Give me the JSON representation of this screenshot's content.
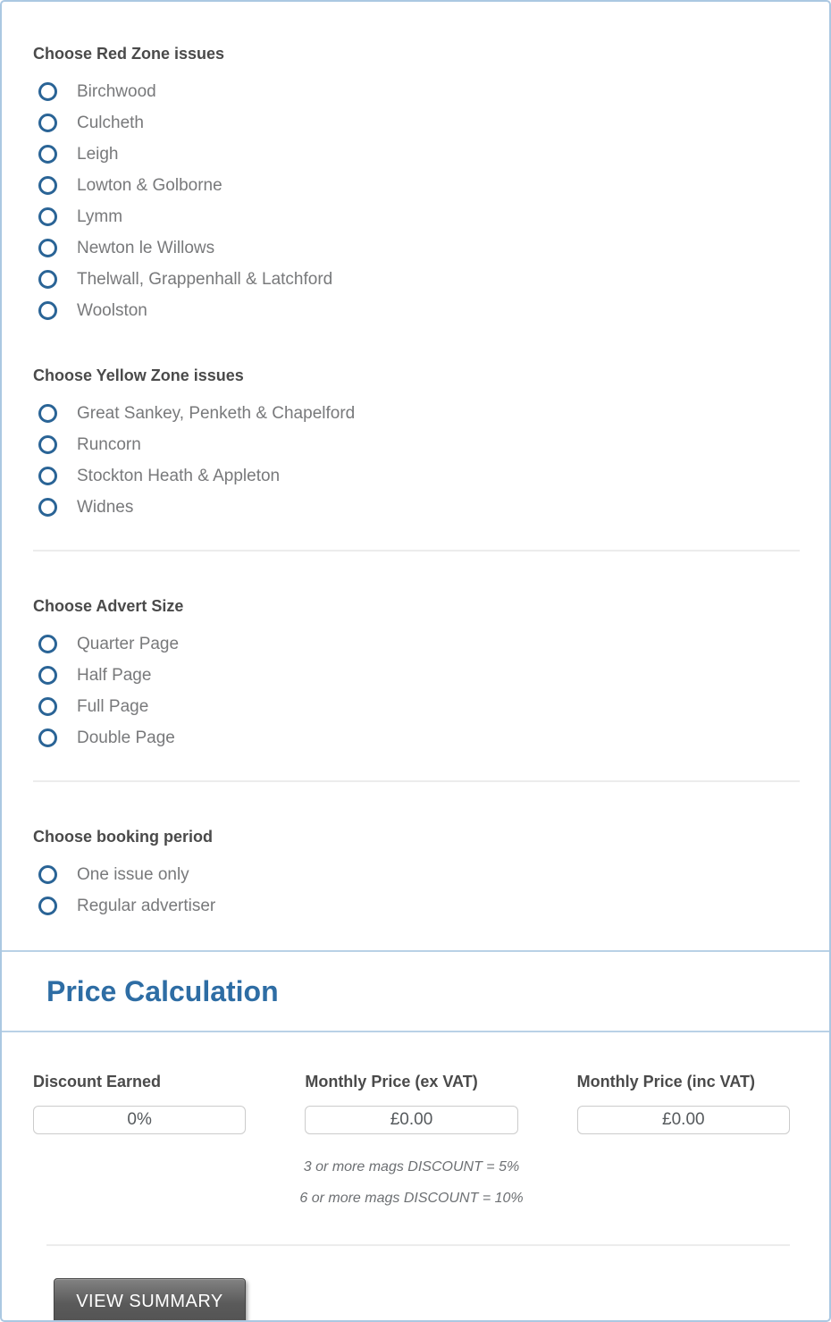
{
  "form": {
    "sections": [
      {
        "heading": "Choose Red Zone issues",
        "options": [
          "Birchwood",
          "Culcheth",
          "Leigh",
          "Lowton & Golborne",
          "Lymm",
          "Newton le Willows",
          "Thelwall, Grappenhall & Latchford",
          "Woolston"
        ]
      },
      {
        "heading": "Choose Yellow Zone issues",
        "options": [
          "Great Sankey, Penketh & Chapelford",
          "Runcorn",
          "Stockton Heath & Appleton",
          "Widnes"
        ]
      },
      {
        "heading": "Choose Advert Size",
        "options": [
          "Quarter Page",
          "Half Page",
          "Full Page",
          "Double Page"
        ]
      },
      {
        "heading": "Choose booking period",
        "options": [
          "One issue only",
          "Regular advertiser"
        ]
      }
    ]
  },
  "price_calculation": {
    "title": "Price Calculation",
    "fields": [
      {
        "label": "Discount Earned",
        "value": "0%"
      },
      {
        "label": "Monthly Price (ex VAT)",
        "value": "£0.00"
      },
      {
        "label": "Monthly Price (inc VAT)",
        "value": "£0.00"
      }
    ],
    "notes": [
      "3 or more mags DISCOUNT = 5%",
      "6 or more mags DISCOUNT = 10%"
    ],
    "view_summary_label": "VIEW SUMMARY"
  },
  "colors": {
    "page_border": "#abc8e2",
    "band_border": "#b9d1e6",
    "radio_ring": "#2a6496",
    "heading_text": "#4a4a4a",
    "option_text": "#78797b",
    "title_blue": "#2e6da4",
    "note_text": "#6d7073",
    "box_border": "#cccccc",
    "button_bg": "#5a5a5a",
    "button_text": "#ffffff"
  }
}
